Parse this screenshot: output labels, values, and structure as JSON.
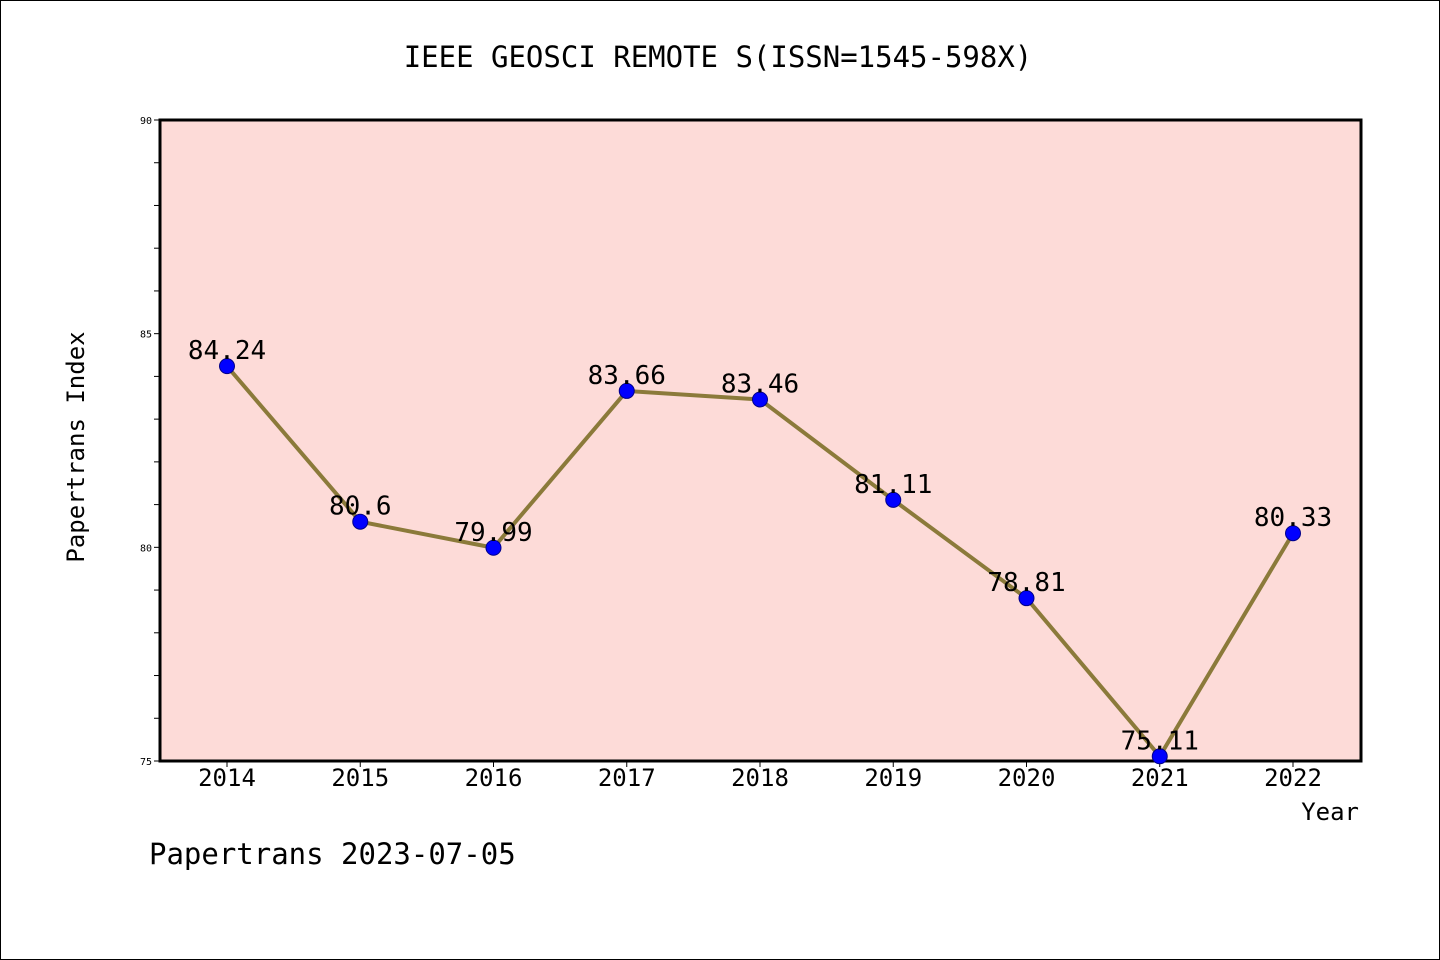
{
  "chart_data": {
    "type": "line",
    "title": "IEEE GEOSCI REMOTE S(ISSN=1545-598X)",
    "xlabel": "Year",
    "ylabel": "Papertrans Index",
    "categories": [
      "2014",
      "2015",
      "2016",
      "2017",
      "2018",
      "2019",
      "2020",
      "2021",
      "2022"
    ],
    "series": [
      {
        "values": [
          84.24,
          80.6,
          79.99,
          83.66,
          83.46,
          81.11,
          78.81,
          75.11,
          80.33
        ],
        "labels": [
          "84.24",
          "80.6",
          "79.99",
          "83.66",
          "83.46",
          "81.11",
          "78.81",
          "75.11",
          "80.33"
        ],
        "line_color": "#8b7a3a",
        "marker_color": "#0000ff"
      }
    ],
    "ylim": [
      75,
      90
    ],
    "yticks": [
      "75",
      "80",
      "85",
      "90"
    ],
    "plot_background": "#fddbd8",
    "grid": false,
    "legend": "none"
  },
  "footer": {
    "text": "Papertrans 2023-07-05"
  }
}
